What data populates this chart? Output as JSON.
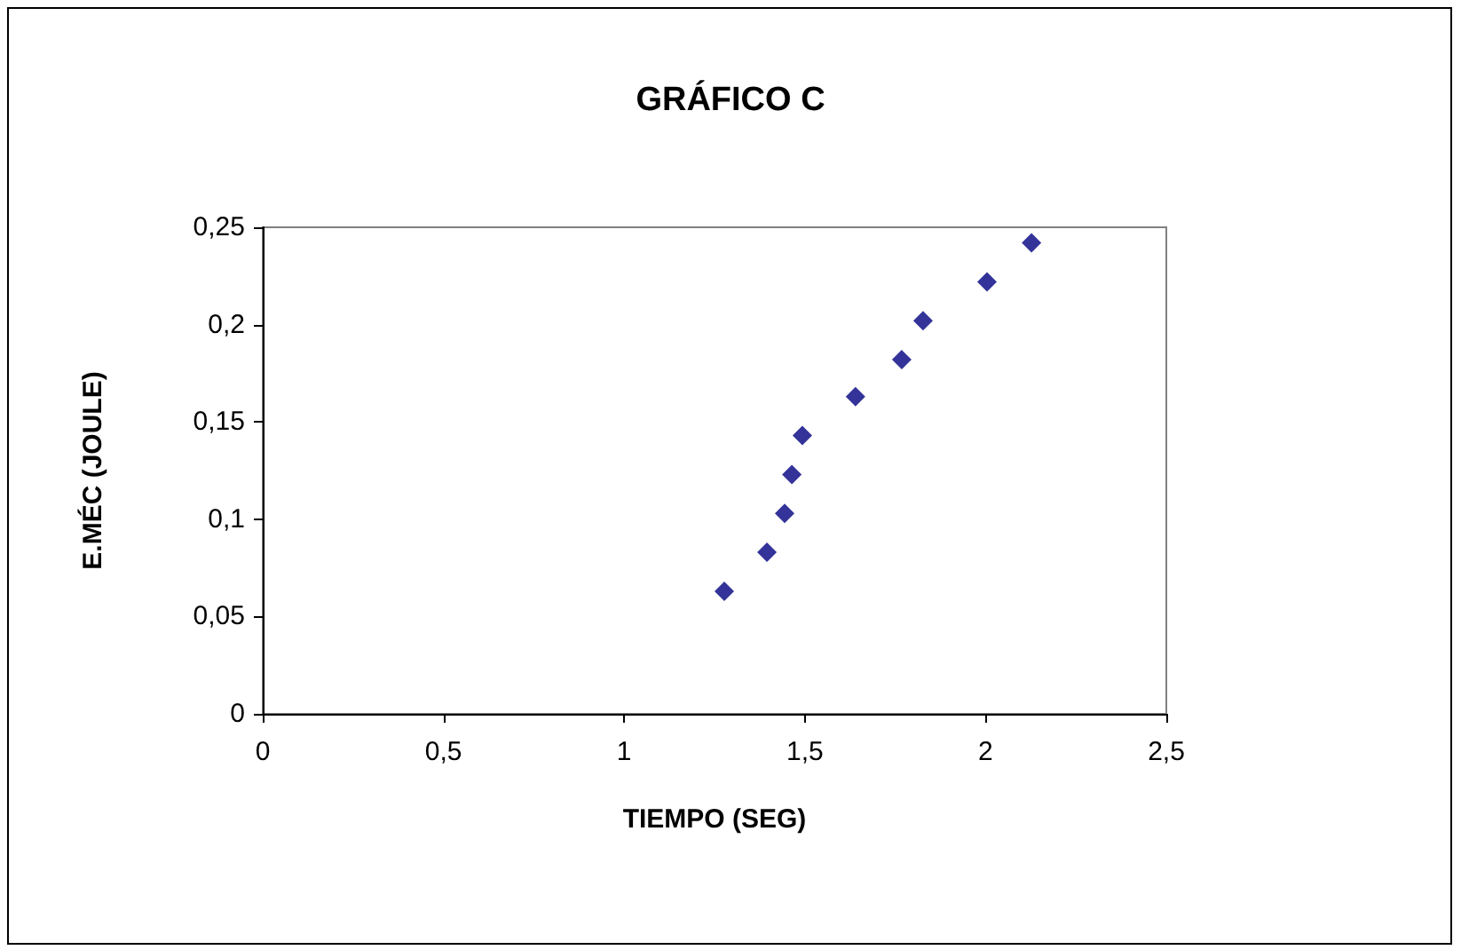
{
  "chart_data": {
    "type": "scatter",
    "title": "GRÁFICO C",
    "xlabel": "TIEMPO (SEG)",
    "ylabel": "E.MÉC (JOULE)",
    "x": [
      1.277,
      1.395,
      1.444,
      1.464,
      1.493,
      1.64,
      1.768,
      1.827,
      2.004,
      2.127
    ],
    "series": [
      {
        "color": "#000080",
        "values": [
          0.063,
          0.083,
          0.103,
          0.123,
          0.143,
          0.163,
          0.182,
          0.202,
          0.222,
          0.242
        ]
      }
    ],
    "xlim": [
      0,
      2.5
    ],
    "ylim": [
      0,
      0.25
    ],
    "xticks": [
      0,
      {
        "value": 0.5,
        "label": "0,5"
      },
      1,
      {
        "value": 1.5,
        "label": "1,5"
      },
      2,
      {
        "value": 2.5,
        "label": "2,5"
      }
    ],
    "yticks": [
      0,
      {
        "value": 0.05,
        "label": "0,05"
      },
      {
        "value": 0.1,
        "label": "0,1"
      },
      {
        "value": 0.15,
        "label": "0,15"
      },
      {
        "value": 0.2,
        "label": "0,2"
      },
      {
        "value": 0.25,
        "label": "0,25"
      }
    ],
    "grid": false,
    "marker": "diamond"
  }
}
